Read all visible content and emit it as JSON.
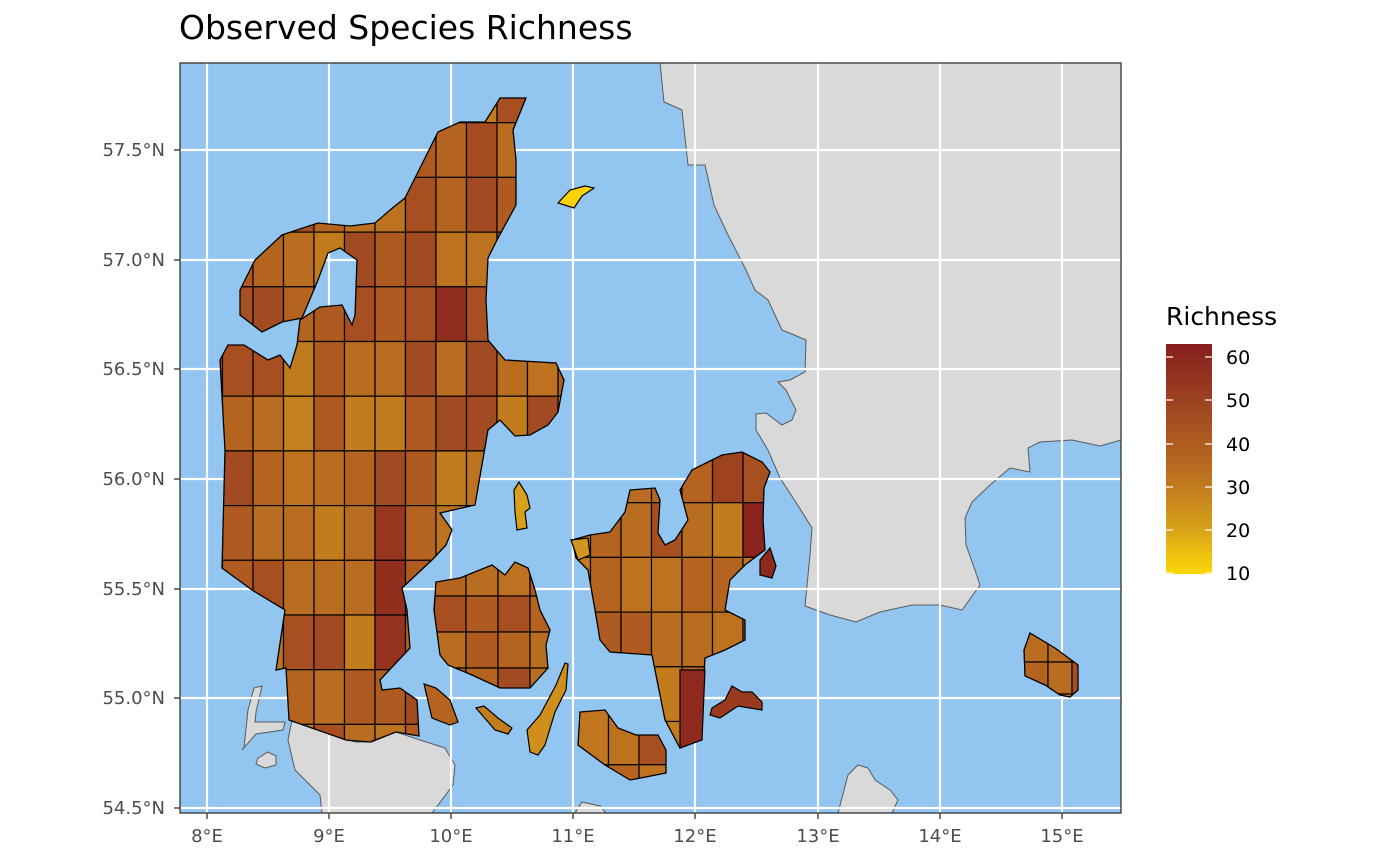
{
  "title": "Observed Species Richness",
  "axes": {
    "x_ticks": [
      "8°E",
      "9°E",
      "10°E",
      "11°E",
      "12°E",
      "13°E",
      "14°E",
      "15°E"
    ],
    "y_ticks": [
      "54.5°N",
      "55.0°N",
      "55.5°N",
      "56.0°N",
      "56.5°N",
      "57.0°N",
      "57.5°N"
    ]
  },
  "legend": {
    "title": "Richness",
    "ticks": [
      "60",
      "50",
      "40",
      "30",
      "20",
      "10"
    ],
    "min": 10,
    "max": 63,
    "low_color": "#FDD808",
    "high_color": "#851E1E"
  },
  "colors": {
    "sea": "#92C5F0",
    "land": "#D9D9D9",
    "grid": "#FFFFFF"
  }
}
